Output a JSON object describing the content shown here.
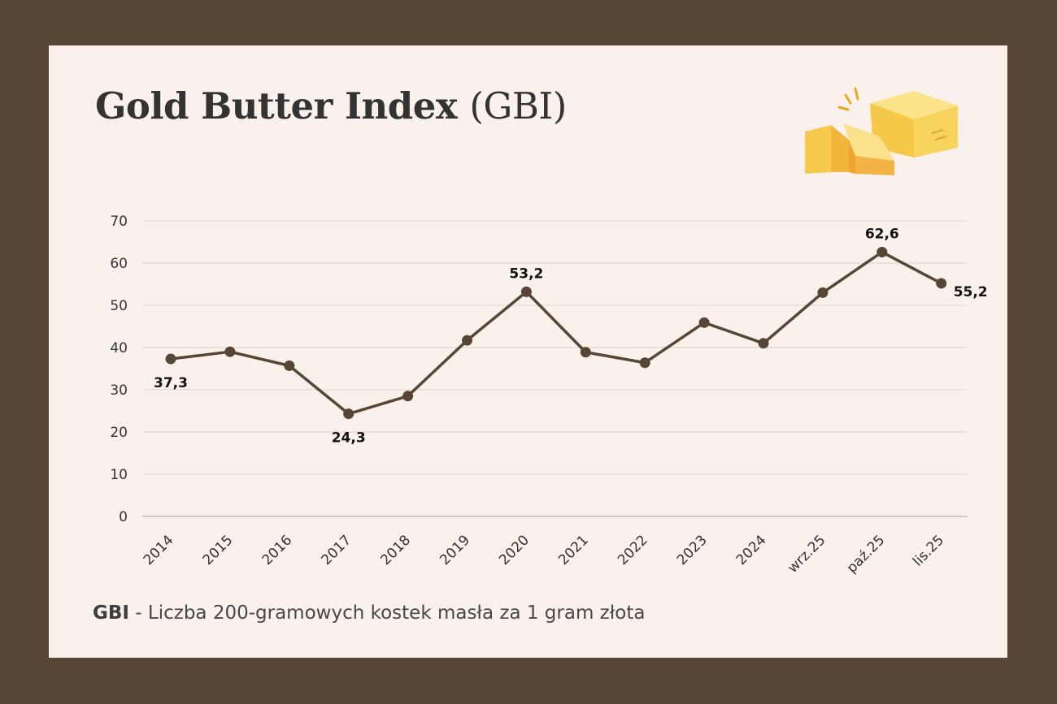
{
  "title": "Gold Butter Index (GBI)",
  "title_main": "Gold Butter Index ",
  "title_paren": "(GBI)",
  "illustration": "butter-blocks-illustration",
  "footnote": {
    "abbr": "GBI",
    "text": " - Liczba 200-gramowych kostek masła za 1 gram złota"
  },
  "colors": {
    "background": "#574535",
    "card": "#fbf1ec",
    "line": "#574535",
    "grid": "#d9d2ce"
  },
  "chart_data": {
    "type": "line",
    "categories": [
      "2014",
      "2015",
      "2016",
      "2017",
      "2018",
      "2019",
      "2020",
      "2021",
      "2022",
      "2023",
      "2024",
      "wrz.25",
      "paź.25",
      "lis.25"
    ],
    "series": [
      {
        "values": [
          37.3,
          39.0,
          35.7,
          24.3,
          28.5,
          41.7,
          53.2,
          38.9,
          36.4,
          45.9,
          41.0,
          53.0,
          62.6,
          55.2
        ]
      }
    ],
    "data_labels": [
      {
        "index": 0,
        "text": "37,3",
        "position": "below"
      },
      {
        "index": 3,
        "text": "24,3",
        "position": "below"
      },
      {
        "index": 6,
        "text": "53,2",
        "position": "above"
      },
      {
        "index": 12,
        "text": "62,6",
        "position": "above"
      },
      {
        "index": 13,
        "text": "55,2",
        "position": "below-right"
      }
    ],
    "ylim": [
      0,
      70
    ],
    "yticks": [
      "0",
      "10",
      "20",
      "30",
      "40",
      "50",
      "60",
      "70"
    ],
    "xlabel": "",
    "ylabel": "",
    "grid": true,
    "legend": "none"
  }
}
